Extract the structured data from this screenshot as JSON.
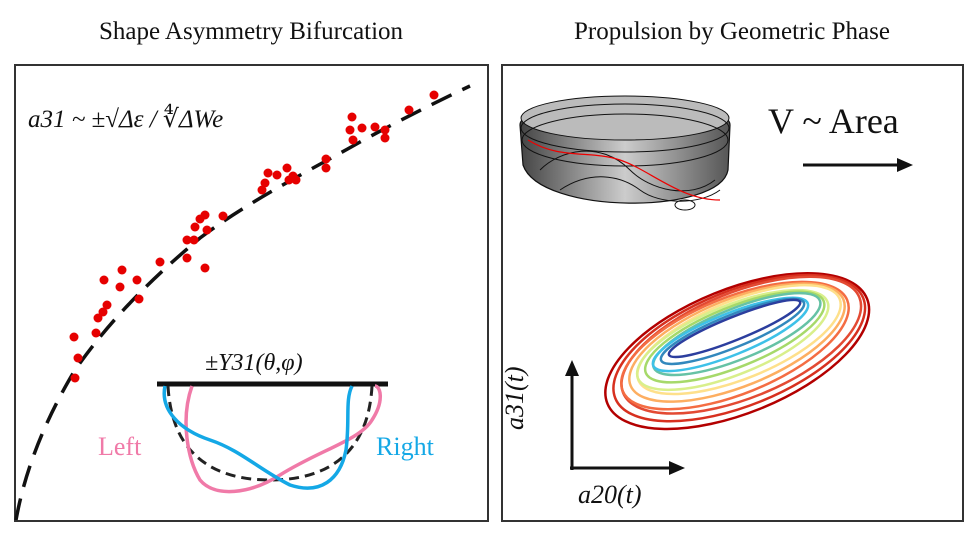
{
  "left_panel": {
    "title": "Shape Asymmetry Bifurcation",
    "formula": "a31 ~ ±√Δε / ∜ΔWe",
    "inset": {
      "label": "±Y31(θ,φ)",
      "left_label": "Left",
      "right_label": "Right",
      "left_color": "#f07aa8",
      "right_color": "#14a8e6"
    },
    "point_color": "#e60000"
  },
  "right_panel": {
    "title": "Propulsion by Geometric Phase",
    "relation": "V ~ Area",
    "y_axis_label": "a31(t)",
    "x_axis_label": "a20(t)"
  }
}
